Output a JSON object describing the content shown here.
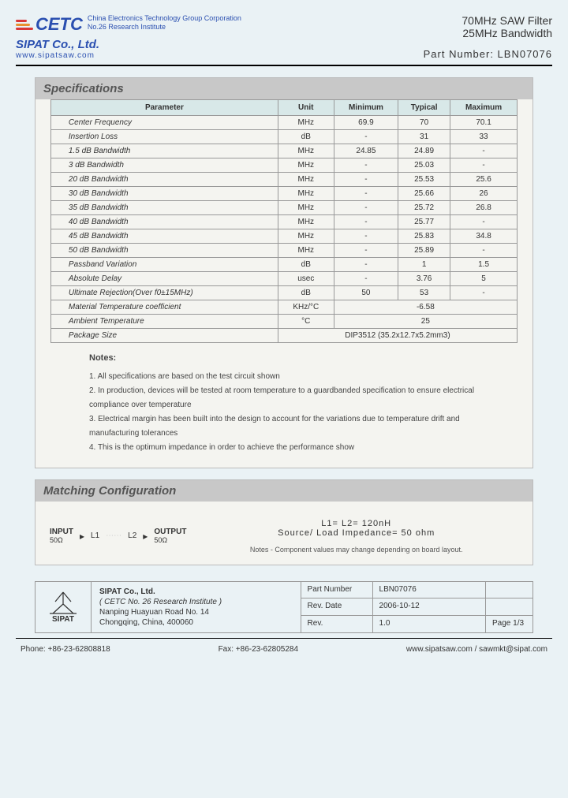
{
  "header": {
    "cetc_name": "CETC",
    "cetc_sub1": "China Electronics Technology Group Corporation",
    "cetc_sub2": "No.26 Research Institute",
    "company": "SIPAT Co., Ltd.",
    "url": "www.sipatsaw.com",
    "product_line1": "70MHz SAW Filter",
    "product_line2": "25MHz Bandwidth",
    "part_label": "Part Number: LBN07076",
    "logo_colors": [
      "#d93838",
      "#e89030",
      "#d93838"
    ]
  },
  "specs": {
    "title": "Specifications",
    "columns": [
      "Parameter",
      "Unit",
      "Minimum",
      "Typical",
      "Maximum"
    ],
    "rows": [
      [
        "Center Frequency",
        "MHz",
        "69.9",
        "70",
        "70.1"
      ],
      [
        "Insertion Loss",
        "dB",
        "-",
        "31",
        "33"
      ],
      [
        "1.5 dB Bandwidth",
        "MHz",
        "24.85",
        "24.89",
        "-"
      ],
      [
        "3 dB Bandwidth",
        "MHz",
        "-",
        "25.03",
        "-"
      ],
      [
        "20 dB Bandwidth",
        "MHz",
        "-",
        "25.53",
        "25.6"
      ],
      [
        "30 dB Bandwidth",
        "MHz",
        "-",
        "25.66",
        "26"
      ],
      [
        "35 dB Bandwidth",
        "MHz",
        "-",
        "25.72",
        "26.8"
      ],
      [
        "40 dB Bandwidth",
        "MHz",
        "-",
        "25.77",
        "-"
      ],
      [
        "45 dB Bandwidth",
        "MHz",
        "-",
        "25.83",
        "34.8"
      ],
      [
        "50 dB Bandwidth",
        "MHz",
        "-",
        "25.89",
        "-"
      ],
      [
        "Passband Variation",
        "dB",
        "-",
        "1",
        "1.5"
      ],
      [
        "Absolute Delay",
        "usec",
        "-",
        "3.76",
        "5"
      ],
      [
        "Ultimate Rejection(Over f0±15MHz)",
        "dB",
        "50",
        "53",
        "-"
      ]
    ],
    "merged_rows": [
      {
        "param": "Material Temperature coefficient",
        "unit": "KHz/°C",
        "value": "-6.58"
      },
      {
        "param": "Ambient Temperature",
        "unit": "°C",
        "value": "25"
      }
    ],
    "package_row": {
      "param": "Package Size",
      "value": "DIP3512   (35.2x12.7x5.2mm3)"
    }
  },
  "notes": {
    "title": "Notes:",
    "items": [
      "1. All specifications are based on the test circuit shown",
      "2. In production, devices will be tested at room temperature to a guardbanded specification to ensure electrical compliance over temperature",
      "3. Electrical margin has been built into the design to account for the variations due to temperature drift and manufacturing tolerances",
      "4. This is the optimum impedance in order to achieve the performance show"
    ]
  },
  "matching": {
    "title": "Matching Configuration",
    "input_label": "INPUT",
    "input_imp": "50Ω",
    "l1": "L1",
    "l2": "L2",
    "output_label": "OUTPUT",
    "output_imp": "50Ω",
    "eq1": "L1= L2= 120nH",
    "eq2": "Source/ Load Impedance= 50 ohm",
    "note": "Notes - Component values may change depending on board layout."
  },
  "footer": {
    "logo_text": "SIPAT",
    "addr_name": "SIPAT Co., Ltd.",
    "addr_sub": "( CETC No. 26 Research Institute )",
    "addr_line1": "Nanping Huayuan Road No. 14",
    "addr_line2": "Chongqing, China, 400060",
    "pn_label": "Part Number",
    "pn_value": "LBN07076",
    "date_label": "Rev. Date",
    "date_value": "2006-10-12",
    "rev_label": "Rev.",
    "rev_value": "1.0",
    "page_label": "Page  1/3"
  },
  "contact": {
    "phone": "Phone: +86-23-62808818",
    "fax": "Fax: +86-23-62805284",
    "web": "www.sipatsaw.com / sawmkt@sipat.com"
  }
}
